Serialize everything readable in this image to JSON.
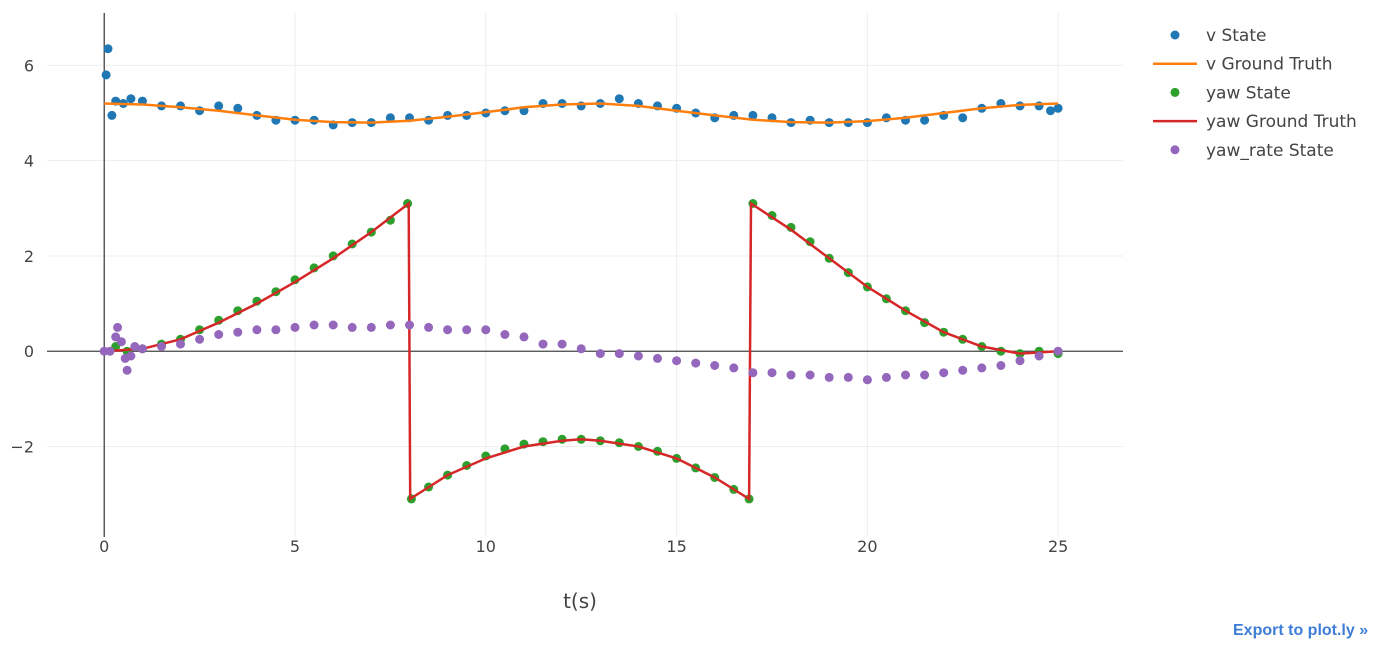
{
  "chart_data": {
    "type": "scatter",
    "title": "",
    "xlabel": "t(s)",
    "ylabel": "",
    "xlim": [
      -1.5,
      26.7
    ],
    "ylim": [
      -3.9,
      7.1
    ],
    "xticks": [
      0,
      5,
      10,
      15,
      20,
      25
    ],
    "yticks": [
      -2,
      0,
      2,
      4,
      6
    ],
    "x_tick_labels": [
      "0",
      "5",
      "10",
      "15",
      "20",
      "25"
    ],
    "y_tick_labels": [
      "−2",
      "0",
      "2",
      "4",
      "6"
    ],
    "grid": true,
    "legend_position": "top-right",
    "series": [
      {
        "name": "v State",
        "mode": "markers",
        "color": "#1f77b4",
        "x": [
          0.05,
          0.1,
          0.2,
          0.3,
          0.5,
          0.7,
          1,
          1.5,
          2,
          2.5,
          3,
          3.5,
          4,
          4.5,
          5,
          5.5,
          6,
          6.5,
          7,
          7.5,
          8,
          8.5,
          9,
          9.5,
          10,
          10.5,
          11,
          11.5,
          12,
          12.5,
          13,
          13.5,
          14,
          14.5,
          15,
          15.5,
          16,
          16.5,
          17,
          17.5,
          18,
          18.5,
          19,
          19.5,
          20,
          20.5,
          21,
          21.5,
          22,
          22.5,
          23,
          23.5,
          24,
          24.5,
          24.8,
          25
        ],
        "y": [
          5.8,
          6.35,
          4.95,
          5.25,
          5.2,
          5.3,
          5.25,
          5.15,
          5.15,
          5.05,
          5.15,
          5.1,
          4.95,
          4.85,
          4.85,
          4.85,
          4.75,
          4.8,
          4.8,
          4.9,
          4.9,
          4.85,
          4.95,
          4.95,
          5.0,
          5.05,
          5.05,
          5.2,
          5.2,
          5.15,
          5.2,
          5.3,
          5.2,
          5.15,
          5.1,
          5.0,
          4.9,
          4.95,
          4.95,
          4.9,
          4.8,
          4.85,
          4.8,
          4.8,
          4.8,
          4.9,
          4.85,
          4.85,
          4.95,
          4.9,
          5.1,
          5.2,
          5.15,
          5.15,
          5.05,
          5.1
        ]
      },
      {
        "name": "v Ground Truth",
        "mode": "lines",
        "color": "#ff7f0e",
        "x": [
          0,
          1,
          2,
          3,
          4,
          5,
          6,
          7,
          8,
          9,
          10,
          11,
          12,
          13,
          14,
          15,
          16,
          17,
          18,
          19,
          20,
          21,
          22,
          23,
          24,
          25
        ],
        "y": [
          5.2,
          5.18,
          5.12,
          5.05,
          4.95,
          4.86,
          4.81,
          4.8,
          4.84,
          4.92,
          5.02,
          5.12,
          5.18,
          5.2,
          5.15,
          5.05,
          4.95,
          4.86,
          4.81,
          4.8,
          4.83,
          4.9,
          5.0,
          5.1,
          5.17,
          5.2
        ]
      },
      {
        "name": "yaw State",
        "mode": "markers",
        "color": "#2ca02c",
        "x": [
          0.3,
          0.6,
          1,
          1.5,
          2,
          2.5,
          3,
          3.5,
          4,
          4.5,
          5,
          5.5,
          6,
          6.5,
          7,
          7.5,
          7.95,
          8.05,
          8.5,
          9,
          9.5,
          10,
          10.5,
          11,
          11.5,
          12,
          12.5,
          13,
          13.5,
          14,
          14.5,
          15,
          15.5,
          16,
          16.5,
          16.9,
          17.0,
          17.5,
          18,
          18.5,
          19,
          19.5,
          20,
          20.5,
          21,
          21.5,
          22,
          22.5,
          23,
          23.5,
          24,
          24.5,
          25
        ],
        "y": [
          0.1,
          0.0,
          0.05,
          0.15,
          0.25,
          0.45,
          0.65,
          0.85,
          1.05,
          1.25,
          1.5,
          1.75,
          2.0,
          2.25,
          2.5,
          2.75,
          3.1,
          -3.1,
          -2.85,
          -2.6,
          -2.4,
          -2.2,
          -2.05,
          -1.95,
          -1.9,
          -1.85,
          -1.85,
          -1.88,
          -1.92,
          -2.0,
          -2.1,
          -2.25,
          -2.45,
          -2.65,
          -2.9,
          -3.1,
          3.1,
          2.85,
          2.6,
          2.3,
          1.95,
          1.65,
          1.35,
          1.1,
          0.85,
          0.6,
          0.4,
          0.25,
          0.1,
          0.0,
          -0.05,
          0.0,
          -0.05
        ]
      },
      {
        "name": "yaw Ground Truth",
        "mode": "lines",
        "color": "#d62728",
        "x": [
          0,
          1,
          2,
          3,
          4,
          5,
          6,
          7,
          7.98,
          8.02,
          9,
          10,
          11,
          12,
          12.5,
          13,
          14,
          15,
          16,
          16.9,
          16.95,
          18,
          19,
          20,
          21,
          22,
          23,
          24,
          25
        ],
        "y": [
          0.0,
          0.05,
          0.25,
          0.6,
          1.0,
          1.45,
          1.95,
          2.5,
          3.1,
          -3.1,
          -2.6,
          -2.25,
          -2.0,
          -1.88,
          -1.85,
          -1.88,
          -2.0,
          -2.25,
          -2.65,
          -3.1,
          3.1,
          2.55,
          1.95,
          1.35,
          0.85,
          0.4,
          0.1,
          -0.05,
          0.0
        ]
      },
      {
        "name": "yaw_rate State",
        "mode": "markers",
        "color": "#9467bd",
        "x": [
          0,
          0.15,
          0.3,
          0.35,
          0.45,
          0.55,
          0.6,
          0.7,
          0.8,
          1,
          1.5,
          2,
          2.5,
          3,
          3.5,
          4,
          4.5,
          5,
          5.5,
          6,
          6.5,
          7,
          7.5,
          8,
          8.5,
          9,
          9.5,
          10,
          10.5,
          11,
          11.5,
          12,
          12.5,
          13,
          13.5,
          14,
          14.5,
          15,
          15.5,
          16,
          16.5,
          17,
          17.5,
          18,
          18.5,
          19,
          19.5,
          20,
          20.5,
          21,
          21.5,
          22,
          22.5,
          23,
          23.5,
          24,
          24.5,
          25
        ],
        "y": [
          0.0,
          0.0,
          0.3,
          0.5,
          0.2,
          -0.15,
          -0.4,
          -0.1,
          0.1,
          0.05,
          0.1,
          0.15,
          0.25,
          0.35,
          0.4,
          0.45,
          0.45,
          0.5,
          0.55,
          0.55,
          0.5,
          0.5,
          0.55,
          0.55,
          0.5,
          0.45,
          0.45,
          0.45,
          0.35,
          0.3,
          0.15,
          0.15,
          0.05,
          -0.05,
          -0.05,
          -0.1,
          -0.15,
          -0.2,
          -0.25,
          -0.3,
          -0.35,
          -0.45,
          -0.45,
          -0.5,
          -0.5,
          -0.55,
          -0.55,
          -0.6,
          -0.55,
          -0.5,
          -0.5,
          -0.45,
          -0.4,
          -0.35,
          -0.3,
          -0.2,
          -0.1,
          0.0
        ]
      }
    ]
  },
  "export_link": "Export to plot.ly »"
}
